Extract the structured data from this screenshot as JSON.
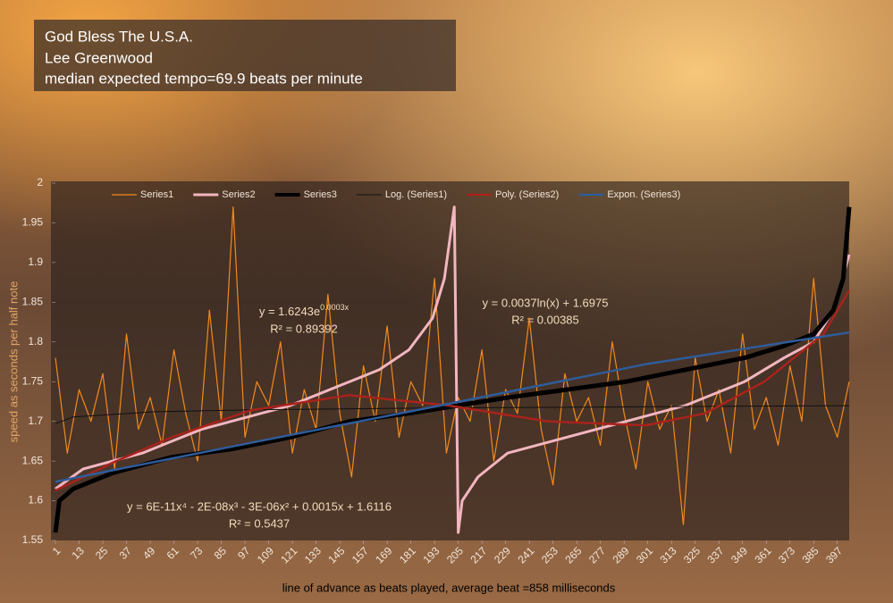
{
  "chart_data": {
    "type": "line",
    "title_lines": [
      "God Bless The U.S.A.",
      "Lee Greenwood",
      "median expected tempo=69.9 beats per minute"
    ],
    "x_label": "line of advance as beats played, average beat =858 milliseconds",
    "y_label": "speed as seconds per half note",
    "xlim": [
      1,
      403
    ],
    "xticks": [
      1,
      13,
      25,
      37,
      49,
      61,
      73,
      85,
      97,
      109,
      121,
      133,
      145,
      157,
      169,
      181,
      193,
      205,
      217,
      229,
      241,
      253,
      265,
      277,
      289,
      301,
      313,
      325,
      337,
      349,
      361,
      373,
      385,
      397
    ],
    "ylim": [
      1.55,
      2
    ],
    "yticks": [
      1.55,
      1.6,
      1.65,
      1.7,
      1.75,
      1.8,
      1.85,
      1.9,
      1.95,
      2
    ],
    "legend": "top",
    "series": [
      {
        "name": "Series1",
        "color": "#f28a1e",
        "line_width": 1.2,
        "x": [
          1,
          7,
          13,
          19,
          25,
          31,
          37,
          43,
          49,
          55,
          61,
          67,
          73,
          79,
          85,
          91,
          97,
          103,
          109,
          115,
          121,
          127,
          133,
          139,
          145,
          151,
          157,
          163,
          169,
          175,
          181,
          187,
          193,
          199,
          205,
          211,
          217,
          223,
          229,
          235,
          241,
          247,
          253,
          259,
          265,
          271,
          277,
          283,
          289,
          295,
          301,
          307,
          313,
          319,
          325,
          331,
          337,
          343,
          349,
          355,
          361,
          367,
          373,
          379,
          385,
          391,
          397,
          403
        ],
        "values": [
          1.78,
          1.66,
          1.74,
          1.7,
          1.76,
          1.64,
          1.81,
          1.69,
          1.73,
          1.67,
          1.79,
          1.71,
          1.65,
          1.84,
          1.7,
          1.97,
          1.68,
          1.75,
          1.72,
          1.8,
          1.66,
          1.74,
          1.69,
          1.86,
          1.71,
          1.63,
          1.77,
          1.7,
          1.82,
          1.68,
          1.75,
          1.72,
          1.88,
          1.66,
          1.73,
          1.7,
          1.79,
          1.65,
          1.74,
          1.71,
          1.83,
          1.69,
          1.62,
          1.76,
          1.7,
          1.73,
          1.67,
          1.8,
          1.71,
          1.64,
          1.75,
          1.69,
          1.72,
          1.57,
          1.78,
          1.7,
          1.74,
          1.66,
          1.81,
          1.69,
          1.73,
          1.67,
          1.77,
          1.7,
          1.88,
          1.72,
          1.68,
          1.75
        ]
      },
      {
        "name": "Series2",
        "color": "#f2b6c0",
        "line_width": 3,
        "x": [
          1,
          15,
          30,
          45,
          60,
          75,
          90,
          105,
          120,
          135,
          150,
          165,
          180,
          192,
          198,
          203,
          205,
          207,
          215,
          230,
          260,
          290,
          320,
          350,
          370,
          385,
          395,
          403
        ],
        "values": [
          1.615,
          1.64,
          1.65,
          1.66,
          1.675,
          1.69,
          1.7,
          1.71,
          1.72,
          1.735,
          1.75,
          1.765,
          1.79,
          1.83,
          1.88,
          1.97,
          1.56,
          1.6,
          1.63,
          1.66,
          1.68,
          1.7,
          1.72,
          1.75,
          1.78,
          1.8,
          1.84,
          1.91
        ]
      },
      {
        "name": "Series3",
        "color": "#000000",
        "line_width": 5,
        "x": [
          1,
          3,
          10,
          30,
          60,
          90,
          120,
          150,
          180,
          205,
          230,
          260,
          290,
          320,
          350,
          370,
          385,
          395,
          400,
          403
        ],
        "values": [
          1.56,
          1.6,
          1.615,
          1.635,
          1.655,
          1.665,
          1.68,
          1.7,
          1.71,
          1.72,
          1.73,
          1.74,
          1.75,
          1.765,
          1.78,
          1.795,
          1.81,
          1.84,
          1.88,
          1.97
        ]
      },
      {
        "name": "Log. (Series1)",
        "color": "#111111",
        "line_width": 1,
        "x": [
          1,
          10,
          50,
          100,
          200,
          403
        ],
        "values": [
          1.697,
          1.7055,
          1.712,
          1.7145,
          1.717,
          1.7198
        ]
      },
      {
        "name": "Poly. (Series2)",
        "color": "#a8231c",
        "line_width": 2.5,
        "x": [
          1,
          30,
          60,
          100,
          150,
          200,
          250,
          300,
          330,
          360,
          390,
          403
        ],
        "values": [
          1.613,
          1.648,
          1.68,
          1.714,
          1.733,
          1.72,
          1.7,
          1.695,
          1.71,
          1.75,
          1.81,
          1.865
        ]
      },
      {
        "name": "Expon. (Series3)",
        "color": "#2f5c9a",
        "line_width": 2.5,
        "x": [
          1,
          100,
          200,
          300,
          403
        ],
        "values": [
          1.624,
          1.673,
          1.722,
          1.772,
          1.812
        ]
      }
    ],
    "annotations": [
      {
        "text": "y = 1.6243e",
        "sup": "0.0003x"
      },
      "R² = 0.89392",
      "y = 0.0037ln(x) + 1.6975",
      "R² = 0.00385",
      "y = 6E-11x⁴ - 2E-08x³ - 3E-06x² + 0.0015x + 1.6116",
      "R² = 0.5437"
    ]
  }
}
